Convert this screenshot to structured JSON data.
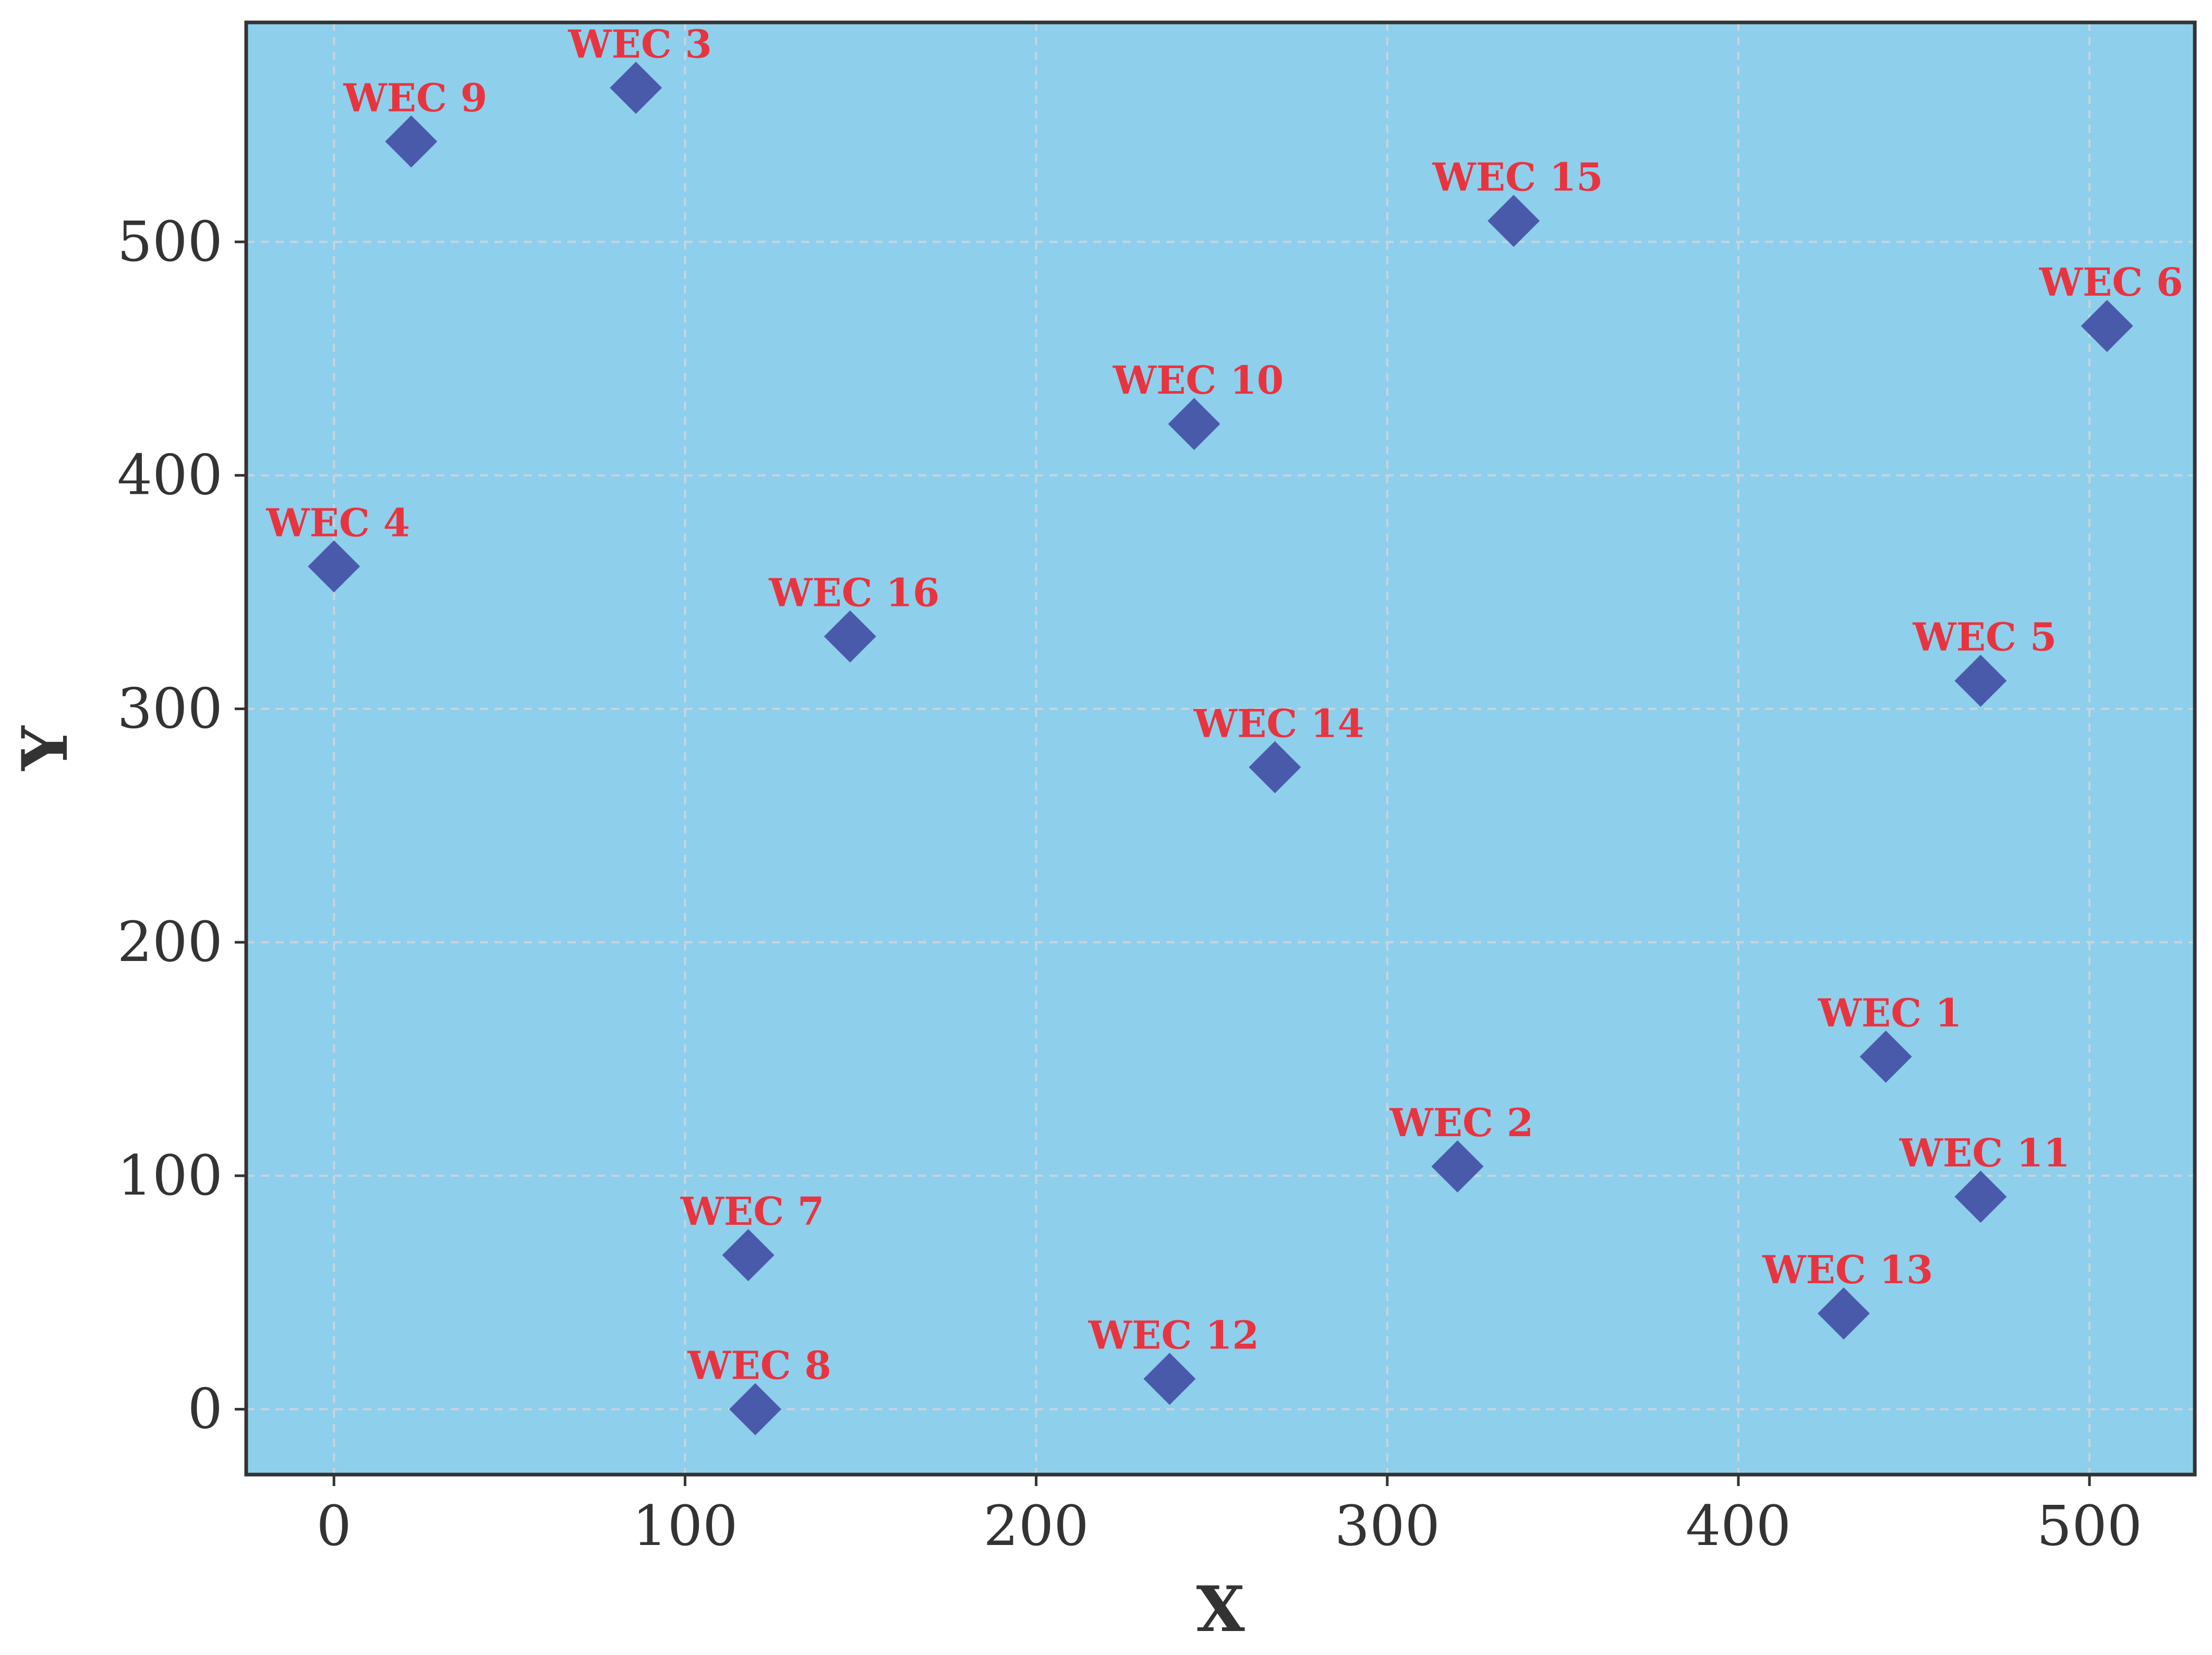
{
  "chart_data": {
    "type": "scatter",
    "title": "",
    "xlabel": "X",
    "ylabel": "Y",
    "xlim": [
      -25,
      530
    ],
    "ylim": [
      -28,
      594
    ],
    "xticks": [
      0,
      100,
      200,
      300,
      400,
      500
    ],
    "yticks": [
      0,
      100,
      200,
      300,
      400,
      500
    ],
    "grid": true,
    "legend": "none",
    "marker": "diamond",
    "colors": {
      "plot_background": "#8ecfec",
      "marker": "#4a5aaa",
      "label": "#e8343f",
      "grid": "#c9d4dc",
      "axes": "#333333"
    },
    "points": [
      {
        "label": "WEC 1",
        "x": 442,
        "y": 151
      },
      {
        "label": "WEC 2",
        "x": 320,
        "y": 104
      },
      {
        "label": "WEC 3",
        "x": 86,
        "y": 566
      },
      {
        "label": "WEC 4",
        "x": 0,
        "y": 361
      },
      {
        "label": "WEC 5",
        "x": 469,
        "y": 312
      },
      {
        "label": "WEC 6",
        "x": 505,
        "y": 464
      },
      {
        "label": "WEC 7",
        "x": 118,
        "y": 66
      },
      {
        "label": "WEC 8",
        "x": 120,
        "y": 0
      },
      {
        "label": "WEC 9",
        "x": 22,
        "y": 543
      },
      {
        "label": "WEC 10",
        "x": 245,
        "y": 422
      },
      {
        "label": "WEC 11",
        "x": 469,
        "y": 91
      },
      {
        "label": "WEC 12",
        "x": 238,
        "y": 13
      },
      {
        "label": "WEC 13",
        "x": 430,
        "y": 41
      },
      {
        "label": "WEC 14",
        "x": 268,
        "y": 275
      },
      {
        "label": "WEC 15",
        "x": 336,
        "y": 509
      },
      {
        "label": "WEC 16",
        "x": 147,
        "y": 331
      }
    ]
  }
}
